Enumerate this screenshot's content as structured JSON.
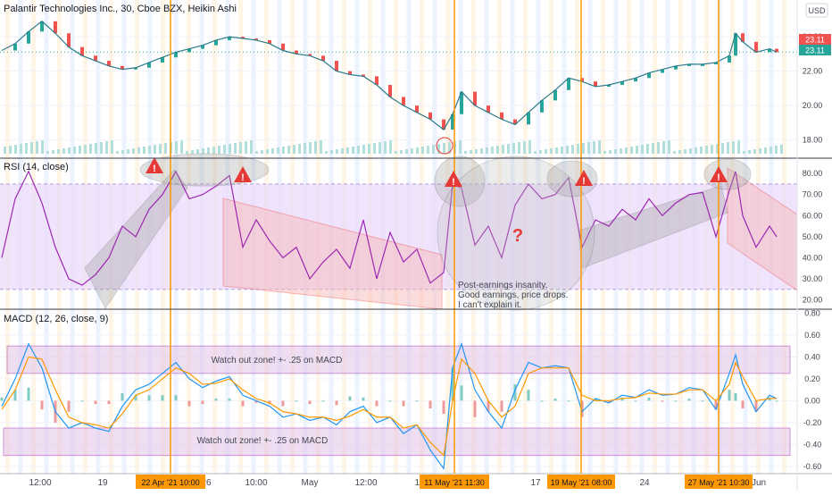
{
  "symbol_title": "Palantir Technologies Inc., 30, Cboe BZX, Heikin Ashi",
  "currency": "USD",
  "price_badges": {
    "top": "23.11",
    "bottom": "23.11"
  },
  "rsi_label": "RSI (14, close)",
  "macd_label": "MACD (12, 26, close, 9)",
  "price_axis": [
    "24.00",
    "22.00",
    "20.00",
    "18.00"
  ],
  "rsi_axis": [
    "80.00",
    "70.00",
    "60.00",
    "50.00",
    "40.00",
    "30.00",
    "20.00"
  ],
  "macd_axis": [
    "0.80",
    "0.60",
    "0.40",
    "0.20",
    "0.00",
    "-0.20",
    "-0.40",
    "-0.60"
  ],
  "x_ticks": [
    "12:00",
    "19",
    "26",
    "10:00",
    "May",
    "12:00",
    "10",
    "17",
    "24",
    "Jun"
  ],
  "event_labels": [
    "22 Apr '21   10:00",
    "11 May '21   11:30",
    "19 May '21   08:00",
    "27 May '21   10:30"
  ],
  "annotation": {
    "question_mark": "?",
    "note_lines": [
      "Post-earnings insanity.",
      "Good earnings, price drops.",
      "I can't explain it."
    ]
  },
  "watch_zones": {
    "upper": "Watch out zone!  +- .25 on MACD",
    "lower": "Watch out zone!  +- .25 on MACD"
  },
  "colors": {
    "price_line": "#2a7a8a",
    "up_candle": "#26a69a",
    "down_candle": "#ef5350",
    "rsi_line": "#9c27b0",
    "rsi_band": "#e9d9fb",
    "macd_line": "#2196f3",
    "signal_line": "#ff9800",
    "event_line": "#ff9800",
    "watch_zone": "#c98ce8",
    "warning": "#e53935",
    "up_channel": "#9e9e9e",
    "down_channel": "#ef9a9a"
  },
  "chart_data": [
    {
      "type": "line",
      "title": "Palantir Technologies Inc., 30, Cboe BZX, Heikin Ashi",
      "ylim": [
        17.2,
        25.2
      ],
      "x": [
        0,
        15,
        30,
        45,
        60,
        75,
        90,
        105,
        120,
        135,
        150,
        165,
        180,
        195,
        210,
        225,
        240,
        255,
        270,
        285,
        300,
        315,
        330,
        345,
        360,
        375,
        390,
        405,
        420,
        435,
        450,
        465,
        480,
        495,
        505,
        515,
        530,
        545,
        560,
        575,
        590,
        605,
        620,
        635,
        650,
        665,
        680,
        695,
        710,
        725,
        740,
        755,
        770,
        785,
        800,
        815,
        822,
        830,
        845,
        860,
        868
      ],
      "series": [
        {
          "values": [
            23.2,
            23.6,
            24.3,
            24.9,
            24.2,
            23.4,
            22.9,
            22.6,
            22.3,
            22.1,
            22.2,
            22.5,
            22.8,
            23.1,
            23.3,
            23.5,
            23.8,
            24.0,
            23.9,
            23.8,
            23.6,
            23.2,
            23.0,
            22.9,
            22.6,
            22.0,
            21.8,
            21.7,
            21.2,
            20.5,
            20.0,
            19.6,
            19.2,
            18.6,
            19.5,
            20.8,
            20.0,
            19.6,
            19.2,
            18.9,
            19.6,
            20.3,
            20.9,
            21.6,
            21.4,
            21.1,
            21.2,
            21.4,
            21.6,
            21.9,
            22.1,
            22.3,
            22.4,
            22.4,
            22.5,
            22.9,
            24.2,
            23.7,
            23.1,
            23.3,
            23.1
          ]
        }
      ]
    },
    {
      "type": "line",
      "title": "RSI (14, close)",
      "ylim": [
        16,
        86
      ],
      "x": [
        0,
        15,
        30,
        45,
        60,
        75,
        90,
        105,
        120,
        135,
        150,
        165,
        180,
        195,
        210,
        225,
        240,
        255,
        270,
        285,
        300,
        315,
        330,
        345,
        360,
        375,
        390,
        405,
        420,
        435,
        450,
        465,
        480,
        495,
        505,
        515,
        530,
        545,
        560,
        575,
        590,
        605,
        620,
        635,
        650,
        665,
        680,
        695,
        710,
        725,
        740,
        755,
        770,
        785,
        800,
        815,
        822,
        830,
        845,
        860,
        868
      ],
      "series": [
        {
          "values": [
            40,
            68,
            81,
            66,
            45,
            30,
            27,
            32,
            40,
            55,
            50,
            63,
            70,
            81,
            68,
            70,
            74,
            79,
            45,
            58,
            48,
            40,
            45,
            30,
            38,
            44,
            35,
            58,
            30,
            52,
            38,
            44,
            28,
            33,
            75,
            73,
            46,
            55,
            40,
            65,
            75,
            68,
            70,
            78,
            45,
            58,
            55,
            63,
            58,
            68,
            60,
            66,
            70,
            71,
            50,
            72,
            81,
            60,
            45,
            55,
            50
          ]
        }
      ]
    },
    {
      "type": "line",
      "title": "MACD (12, 26, close, 9)",
      "ylim": [
        -0.65,
        0.82
      ],
      "x": [
        0,
        15,
        30,
        45,
        60,
        75,
        90,
        105,
        120,
        135,
        150,
        165,
        180,
        195,
        210,
        225,
        240,
        255,
        270,
        285,
        300,
        315,
        330,
        345,
        360,
        375,
        390,
        405,
        420,
        435,
        450,
        465,
        480,
        495,
        505,
        515,
        530,
        545,
        560,
        575,
        590,
        605,
        620,
        635,
        650,
        665,
        680,
        695,
        710,
        725,
        740,
        755,
        770,
        785,
        800,
        815,
        822,
        830,
        845,
        860,
        868
      ],
      "series": [
        {
          "name": "MACD",
          "values": [
            -0.05,
            0.2,
            0.52,
            0.3,
            -0.1,
            -0.25,
            -0.2,
            -0.25,
            -0.28,
            -0.05,
            0.1,
            0.15,
            0.25,
            0.35,
            0.2,
            0.12,
            0.18,
            0.22,
            0.05,
            0.0,
            -0.05,
            -0.15,
            -0.12,
            -0.18,
            -0.15,
            -0.22,
            -0.1,
            -0.05,
            -0.2,
            -0.15,
            -0.3,
            -0.22,
            -0.45,
            -0.62,
            0.3,
            0.52,
            0.1,
            -0.1,
            -0.25,
            0.1,
            0.35,
            0.3,
            0.32,
            0.3,
            -0.1,
            0.02,
            -0.02,
            0.05,
            0.03,
            0.1,
            0.05,
            0.06,
            0.12,
            0.1,
            -0.08,
            0.25,
            0.42,
            0.15,
            -0.1,
            0.05,
            0.02
          ]
        },
        {
          "name": "Signal",
          "values": [
            -0.08,
            0.1,
            0.4,
            0.38,
            0.1,
            -0.15,
            -0.2,
            -0.22,
            -0.25,
            -0.12,
            0.05,
            0.1,
            0.2,
            0.3,
            0.25,
            0.15,
            0.16,
            0.2,
            0.1,
            0.02,
            -0.02,
            -0.1,
            -0.12,
            -0.15,
            -0.15,
            -0.18,
            -0.14,
            -0.08,
            -0.15,
            -0.15,
            -0.25,
            -0.22,
            -0.38,
            -0.5,
            0.0,
            0.38,
            0.25,
            0.0,
            -0.15,
            -0.05,
            0.25,
            0.3,
            0.3,
            0.3,
            0.05,
            0.0,
            0.0,
            0.02,
            0.03,
            0.07,
            0.06,
            0.06,
            0.1,
            0.1,
            0.0,
            0.15,
            0.35,
            0.22,
            0.0,
            0.02,
            0.02
          ]
        }
      ]
    }
  ]
}
